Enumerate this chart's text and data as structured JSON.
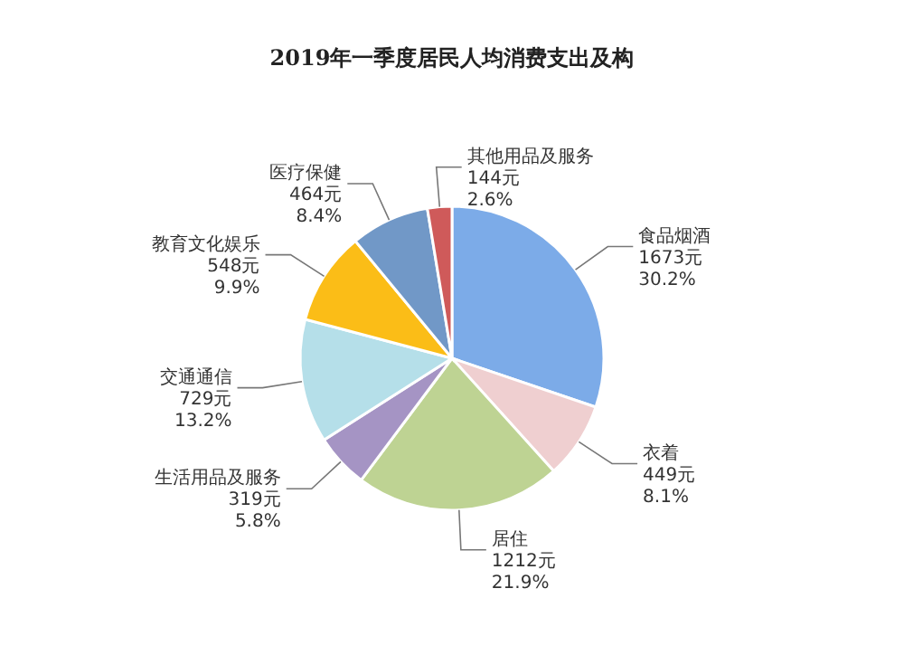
{
  "chart_data": {
    "type": "pie",
    "title": "2019年一季度居民人均消费支出及构",
    "categories": [
      "食品烟酒",
      "衣着",
      "居住",
      "生活用品及服务",
      "交通通信",
      "教育文化娱乐",
      "医疗保健",
      "其他用品及服务"
    ],
    "values": [
      1673,
      449,
      1212,
      319,
      729,
      548,
      464,
      144
    ],
    "value_labels": [
      "1673元 30.2%",
      "449元 8.1%",
      "1212元 21.9%",
      "319元 5.8%",
      "729元 13.2%",
      "548元 9.9%",
      "464元 8.4%",
      "144元 2.6%"
    ],
    "colors": [
      "#7cabe8",
      "#efcfd0",
      "#bed393",
      "#a594c4",
      "#b5dfe9",
      "#fbbd17",
      "#7198c7",
      "#cf5a5a"
    ]
  }
}
